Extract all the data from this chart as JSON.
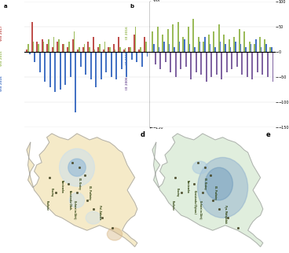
{
  "fig_bg": "#ffffff",
  "legend_a": [
    "VIII 2017",
    "VIII 2015",
    "VIII 2016"
  ],
  "legend_b": [
    "IX 2016",
    "IX 2015",
    "IX 2006"
  ],
  "bar_colors_a": [
    "#c0504d",
    "#9bbb59",
    "#4472c4"
  ],
  "bar_colors_b": [
    "#9bbb59",
    "#4472c4",
    "#8064a2"
  ],
  "n_stations": 24,
  "ylim": [
    -150,
    100
  ],
  "yticks": [
    100,
    50,
    0,
    -50,
    -100,
    -150
  ],
  "map_a_bg": "#f5eac8",
  "map_b_bg": "#e0eedd",
  "map_border": "#aaaaaa",
  "map_fill": "#f5eac8",
  "map_fill_b": "#e0eedd",
  "outside_color": "#e8e8e8"
}
